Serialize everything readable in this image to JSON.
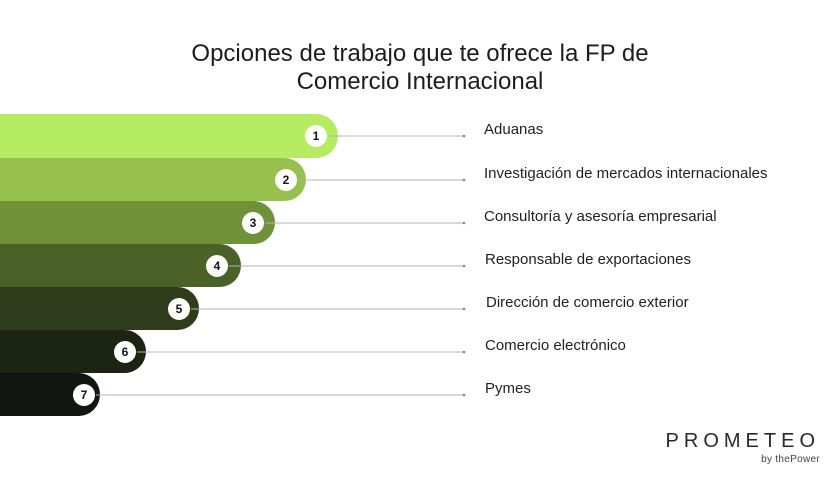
{
  "title": {
    "line1": "Opciones de trabajo que te ofrece la FP de",
    "line2": "Comercio Internacional"
  },
  "steps": [
    {
      "number": "1",
      "label": "Aduanas",
      "color": "#b6ec62"
    },
    {
      "number": "2",
      "label": "Investigación de mercados internacionales",
      "color": "#97c04f"
    },
    {
      "number": "3",
      "label": "Consultoría y asesoría empresarial",
      "color": "#6f9138"
    },
    {
      "number": "4",
      "label": "Responsable de exportaciones",
      "color": "#4a6128"
    },
    {
      "number": "5",
      "label": "Dirección de comercio exterior",
      "color": "#2e3c1c"
    },
    {
      "number": "6",
      "label": "Comercio electrónico",
      "color": "#1c2414"
    },
    {
      "number": "7",
      "label": "Pymes",
      "color": "#121610"
    }
  ],
  "brand": {
    "name": "PROMETEO",
    "sub": "by thePower"
  }
}
